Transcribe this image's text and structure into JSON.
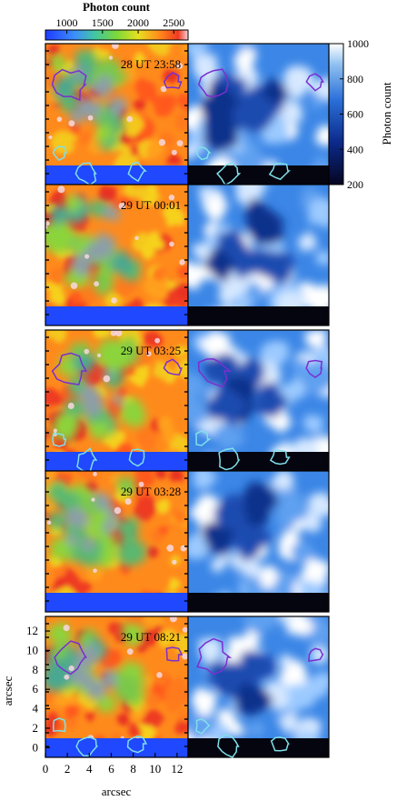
{
  "chart_data": [
    {
      "type": "heatmap",
      "panel": "left",
      "colormap": "rainbow",
      "colorbar": {
        "label": "Photon count",
        "ticks": [
          1000,
          1500,
          2000,
          2500
        ],
        "range": [
          700,
          2700
        ],
        "position": "top"
      },
      "xlabel": "arcsec",
      "ylabel": "arcsec",
      "xticks": [
        0,
        2,
        4,
        6,
        8,
        10,
        12
      ],
      "yticks": [
        0,
        2,
        4,
        6,
        8,
        10,
        12
      ],
      "xlim": [
        0,
        13
      ],
      "ylim": [
        -1,
        13.5
      ],
      "frames": [
        {
          "label": "28 UT 23:58"
        },
        {
          "label": "29 UT 00:01"
        },
        {
          "label": "29 UT 03:25"
        },
        {
          "label": "29 UT 03:28"
        },
        {
          "label": "29 UT 08:21"
        }
      ]
    },
    {
      "type": "heatmap",
      "panel": "right",
      "colormap": "blues",
      "colorbar": {
        "label": "Photon count",
        "ticks": [
          200,
          400,
          600,
          800,
          1000
        ],
        "range": [
          200,
          1000
        ],
        "position": "right"
      },
      "frames": [
        {
          "contours": true
        },
        {
          "contours": false
        },
        {
          "contours": true
        },
        {
          "contours": false
        },
        {
          "contours": true
        }
      ]
    }
  ],
  "colors": {
    "contour_purple": "#7a2fd0",
    "contour_cyan": "#7fe0e8",
    "left_pad": "#1f48ff",
    "right_pad": "#050510"
  }
}
